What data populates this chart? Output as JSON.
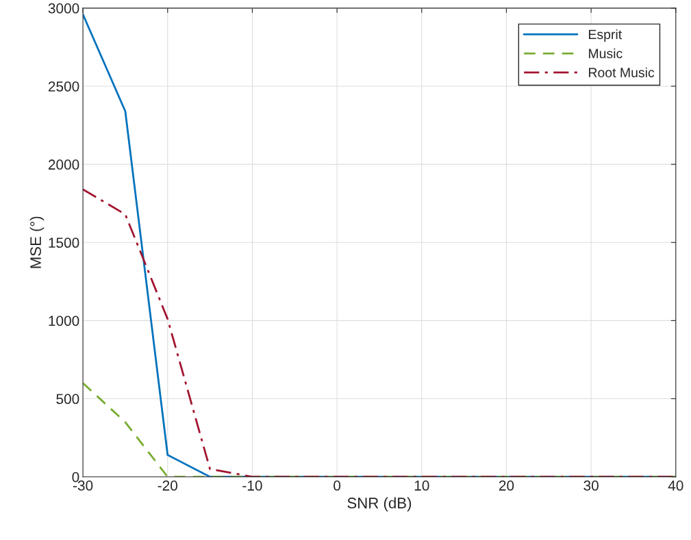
{
  "chart_data": {
    "type": "line",
    "xlabel": "SNR (dB)",
    "ylabel": "MSE (°)",
    "x": [
      -30,
      -25,
      -20,
      -15,
      -10,
      -5,
      0,
      5,
      10,
      15,
      20,
      25,
      30,
      35,
      40
    ],
    "series": [
      {
        "name": "Esprit",
        "color": "#0072bd",
        "line_style": "solid",
        "values": [
          2960,
          2340,
          140,
          0,
          0,
          0,
          0,
          0,
          0,
          0,
          0,
          0,
          0,
          0,
          0
        ]
      },
      {
        "name": "Music",
        "color": "#77ac30",
        "line_style": "dashed",
        "values": [
          600,
          350,
          0,
          0,
          0,
          0,
          0,
          0,
          0,
          0,
          0,
          0,
          0,
          0,
          0
        ]
      },
      {
        "name": "Root Music",
        "color": "#a2142f",
        "line_style": "dashdot",
        "values": [
          1840,
          1680,
          1010,
          50,
          0,
          0,
          0,
          0,
          0,
          0,
          0,
          0,
          0,
          0,
          0
        ]
      }
    ],
    "xlim": [
      -30,
      40
    ],
    "xticks": [
      -30,
      -20,
      -10,
      0,
      10,
      20,
      30,
      40
    ],
    "ylim": [
      0,
      3000
    ],
    "yticks": [
      0,
      500,
      1000,
      1500,
      2000,
      2500,
      3000
    ],
    "grid": true,
    "legend": "top right",
    "marker": "none"
  }
}
